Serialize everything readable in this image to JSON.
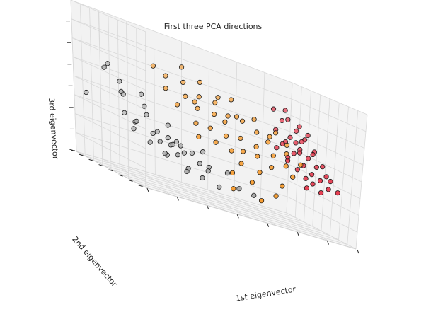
{
  "chart_data": {
    "type": "scatter",
    "projection": "3d",
    "title": "First three PCA directions",
    "xlabel": "1st eigenvector",
    "ylabel": "2nd eigenvector",
    "zlabel": "3rd eigenvector",
    "tick_labels": "none",
    "grid": true,
    "legend": "none",
    "colors": {
      "pane_fill": "#f2f2f2",
      "grid": "#d9d9d9",
      "marker_edge": "#1a1a1a",
      "gray": "#a6a6a6",
      "orange": "#f7941d",
      "red": "#e2243a"
    },
    "series": [
      {
        "color": "#a6a6a6",
        "points": [
          [
            0.06,
            0.75,
            0.64
          ],
          [
            0.1,
            0.82,
            0.67
          ],
          [
            0.12,
            0.7,
            0.52
          ],
          [
            0.14,
            0.78,
            0.58
          ],
          [
            0.2,
            0.66,
            0.55
          ],
          [
            0.17,
            0.82,
            0.5
          ],
          [
            0.2,
            0.9,
            0.37
          ],
          [
            0.24,
            0.74,
            0.47
          ],
          [
            0.04,
            0.95,
            0.42
          ],
          [
            0.21,
            0.76,
            0.35
          ],
          [
            0.28,
            0.83,
            0.41
          ],
          [
            0.28,
            0.68,
            0.33
          ],
          [
            0.3,
            0.8,
            0.3
          ],
          [
            0.26,
            0.93,
            0.33
          ],
          [
            0.34,
            0.71,
            0.31
          ],
          [
            0.38,
            0.71,
            0.3
          ],
          [
            0.3,
            0.55,
            0.28
          ],
          [
            0.17,
            0.68,
            0.3
          ],
          [
            0.22,
            0.6,
            0.25
          ],
          [
            0.25,
            0.55,
            0.28
          ],
          [
            0.3,
            0.6,
            0.2
          ],
          [
            0.33,
            0.5,
            0.3
          ],
          [
            0.24,
            0.45,
            0.22
          ],
          [
            0.4,
            0.55,
            0.27
          ],
          [
            0.42,
            0.5,
            0.22
          ],
          [
            0.44,
            0.43,
            0.22
          ],
          [
            0.25,
            0.3,
            0.25
          ],
          [
            0.3,
            0.3,
            0.18
          ],
          [
            0.35,
            0.25,
            0.15
          ],
          [
            0.41,
            0.35,
            0.2
          ],
          [
            0.44,
            0.28,
            0.12
          ],
          [
            0.28,
            0.26,
            0.16
          ],
          [
            0.45,
            0.2,
            0.24
          ],
          [
            0.5,
            0.18,
            0.16
          ],
          [
            0.55,
            0.12,
            0.15
          ],
          [
            0.38,
            0.6,
            0.25
          ],
          [
            0.46,
            0.58,
            0.3
          ],
          [
            0.32,
            0.65,
            0.4
          ],
          [
            0.26,
            0.4,
            0.3
          ]
        ]
      },
      {
        "color": "#f7941d",
        "points": [
          [
            0.33,
            0.88,
            0.76
          ],
          [
            0.4,
            0.92,
            0.72
          ],
          [
            0.46,
            0.86,
            0.72
          ],
          [
            0.48,
            0.94,
            0.82
          ],
          [
            0.55,
            0.9,
            0.76
          ],
          [
            0.36,
            0.8,
            0.64
          ],
          [
            0.45,
            0.8,
            0.63
          ],
          [
            0.52,
            0.82,
            0.66
          ],
          [
            0.58,
            0.78,
            0.66
          ],
          [
            0.62,
            0.86,
            0.7
          ],
          [
            0.66,
            0.8,
            0.72
          ],
          [
            0.38,
            0.7,
            0.56
          ],
          [
            0.48,
            0.72,
            0.58
          ],
          [
            0.55,
            0.7,
            0.58
          ],
          [
            0.62,
            0.72,
            0.6
          ],
          [
            0.68,
            0.7,
            0.6
          ],
          [
            0.74,
            0.72,
            0.64
          ],
          [
            0.72,
            0.62,
            0.56
          ],
          [
            0.44,
            0.62,
            0.48
          ],
          [
            0.5,
            0.6,
            0.48
          ],
          [
            0.58,
            0.62,
            0.46
          ],
          [
            0.64,
            0.6,
            0.48
          ],
          [
            0.7,
            0.56,
            0.46
          ],
          [
            0.78,
            0.62,
            0.56
          ],
          [
            0.82,
            0.66,
            0.6
          ],
          [
            0.42,
            0.52,
            0.4
          ],
          [
            0.5,
            0.52,
            0.4
          ],
          [
            0.56,
            0.48,
            0.38
          ],
          [
            0.62,
            0.5,
            0.4
          ],
          [
            0.68,
            0.48,
            0.4
          ],
          [
            0.76,
            0.5,
            0.44
          ],
          [
            0.84,
            0.56,
            0.48
          ],
          [
            0.86,
            0.62,
            0.54
          ],
          [
            0.58,
            0.4,
            0.32
          ],
          [
            0.66,
            0.38,
            0.3
          ],
          [
            0.72,
            0.4,
            0.36
          ],
          [
            0.8,
            0.44,
            0.4
          ],
          [
            0.88,
            0.48,
            0.44
          ],
          [
            0.52,
            0.34,
            0.24
          ],
          [
            0.6,
            0.3,
            0.22
          ],
          [
            0.74,
            0.3,
            0.26
          ],
          [
            0.5,
            0.26,
            0.14
          ],
          [
            0.62,
            0.22,
            0.12
          ],
          [
            0.7,
            0.26,
            0.18
          ],
          [
            0.46,
            0.7,
            0.62
          ],
          [
            0.56,
            0.58,
            0.56
          ],
          [
            0.64,
            0.66,
            0.62
          ],
          [
            0.76,
            0.58,
            0.52
          ],
          [
            0.82,
            0.4,
            0.34
          ]
        ]
      },
      {
        "color": "#e2243a",
        "points": [
          [
            0.86,
            0.82,
            0.76
          ],
          [
            0.88,
            0.76,
            0.7
          ],
          [
            0.92,
            0.8,
            0.72
          ],
          [
            0.94,
            0.74,
            0.66
          ],
          [
            0.96,
            0.68,
            0.62
          ],
          [
            0.9,
            0.7,
            0.6
          ],
          [
            0.84,
            0.72,
            0.62
          ],
          [
            0.86,
            0.64,
            0.56
          ],
          [
            0.92,
            0.62,
            0.54
          ],
          [
            0.98,
            0.6,
            0.56
          ],
          [
            0.94,
            0.56,
            0.5
          ],
          [
            0.88,
            0.58,
            0.5
          ],
          [
            0.84,
            0.54,
            0.46
          ],
          [
            0.9,
            0.5,
            0.44
          ],
          [
            0.96,
            0.5,
            0.46
          ],
          [
            0.92,
            0.44,
            0.4
          ],
          [
            0.86,
            0.46,
            0.4
          ],
          [
            0.98,
            0.42,
            0.42
          ],
          [
            0.94,
            0.38,
            0.38
          ],
          [
            0.9,
            0.36,
            0.34
          ],
          [
            0.96,
            0.32,
            0.34
          ],
          [
            0.98,
            0.36,
            0.4
          ],
          [
            0.88,
            0.4,
            0.36
          ],
          [
            0.82,
            0.48,
            0.44
          ],
          [
            0.8,
            0.58,
            0.5
          ],
          [
            0.9,
            0.62,
            0.58
          ],
          [
            0.94,
            0.66,
            0.6
          ],
          [
            0.98,
            0.7,
            0.66
          ],
          [
            0.96,
            0.76,
            0.7
          ],
          [
            0.92,
            0.84,
            0.78
          ],
          [
            0.98,
            0.48,
            0.48
          ],
          [
            0.86,
            0.32,
            0.3
          ],
          [
            0.92,
            0.3,
            0.3
          ],
          [
            0.99,
            0.28,
            0.34
          ],
          [
            0.96,
            0.56,
            0.54
          ],
          [
            0.84,
            0.62,
            0.54
          ],
          [
            0.9,
            0.56,
            0.52
          ]
        ]
      }
    ]
  }
}
